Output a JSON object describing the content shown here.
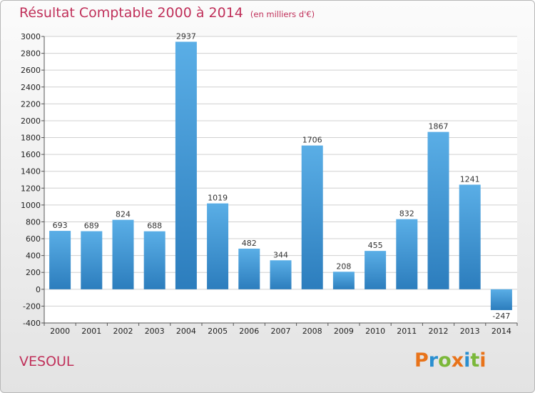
{
  "header": {
    "title": "Résultat Comptable 2000 à 2014",
    "unit": "(en milliers d'€)"
  },
  "footer": {
    "city": "VESOUL",
    "logo_text": "Proxiti",
    "logo_colors": [
      "#e8731a",
      "#2a8fd0",
      "#7bb83a",
      "#e8731a",
      "#2a8fd0",
      "#7bb83a",
      "#e8731a"
    ]
  },
  "colors": {
    "bar_top": "#5aaee6",
    "bar_bottom": "#2c7dbd",
    "title": "#c0305a",
    "grid": "#d0d0d0"
  },
  "chart_data": {
    "type": "bar",
    "categories": [
      "2000",
      "2001",
      "2002",
      "2003",
      "2004",
      "2005",
      "2006",
      "2007",
      "2008",
      "2009",
      "2010",
      "2011",
      "2012",
      "2013",
      "2014"
    ],
    "values": [
      693,
      689,
      824,
      688,
      2937,
      1019,
      482,
      344,
      1706,
      208,
      455,
      832,
      1867,
      1241,
      -247
    ],
    "labels": [
      "693",
      "689",
      "824",
      "688",
      "2937",
      "1019",
      "482",
      "344",
      "1706",
      "208",
      "455",
      "832",
      "1867",
      "1241",
      "-247"
    ],
    "ylim": [
      -400,
      3000
    ],
    "yticks": [
      -400,
      -200,
      0,
      200,
      400,
      600,
      800,
      1000,
      1200,
      1400,
      1600,
      1800,
      2000,
      2200,
      2400,
      2600,
      2800,
      3000
    ],
    "grid": true
  }
}
